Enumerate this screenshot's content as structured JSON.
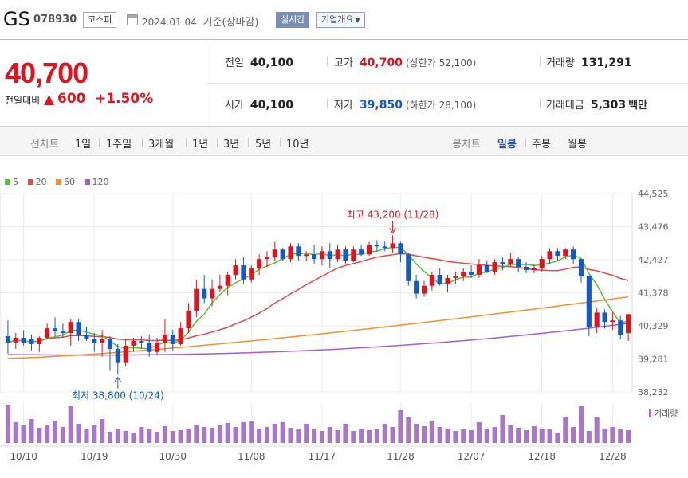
{
  "header": {
    "name": "GS",
    "code": "078930",
    "market": "코스피",
    "date": "2024.01.04",
    "date_suffix": "기준(장마감)",
    "realtime_label": "실시간",
    "company_label": "기업개요"
  },
  "price": {
    "current": "40,700",
    "change_label": "전일대비",
    "change_symbol": "▲",
    "change_amount": "600",
    "change_pct": "+1.50%"
  },
  "stats": {
    "prev_close": {
      "label": "전일",
      "value": "40,100"
    },
    "high": {
      "label": "고가",
      "value": "40,700",
      "sub_label": "상한가",
      "sub_value": "52,100"
    },
    "volume": {
      "label": "거래량",
      "value": "131,291"
    },
    "open": {
      "label": "시가",
      "value": "40,100"
    },
    "low": {
      "label": "저가",
      "value": "39,850",
      "sub_label": "하한가",
      "sub_value": "28,100"
    },
    "amount": {
      "label": "거래대금",
      "value": "5,303",
      "unit": "백만"
    }
  },
  "period_tabs": {
    "line_chart_label": "선차트",
    "items": [
      "1일",
      "1주일",
      "3개월",
      "1년",
      "3년",
      "5년",
      "10년"
    ],
    "candle_label": "봉차트",
    "candle_items": [
      "일봉",
      "주봉",
      "월봉"
    ],
    "active_candle": "일봉"
  },
  "colors": {
    "up": "#e0131f",
    "down": "#1459c8",
    "ma5": "#5bbf3a",
    "ma20": "#e64848",
    "ma60": "#f0922b",
    "ma120": "#a060d0",
    "volume": "#a878c8"
  },
  "chart_data": {
    "type": "candlestick",
    "legend": [
      "5",
      "20",
      "60",
      "120"
    ],
    "volume_legend": "거래량",
    "y_ticks": [
      "44,525",
      "43,476",
      "42,427",
      "41,378",
      "40,329",
      "39,281",
      "38,232"
    ],
    "y_range": [
      38232,
      44525
    ],
    "x_ticks": [
      {
        "label": "10/10",
        "index": 2
      },
      {
        "label": "10/19",
        "index": 11
      },
      {
        "label": "10/30",
        "index": 21
      },
      {
        "label": "11/08",
        "index": 31
      },
      {
        "label": "11/17",
        "index": 40
      },
      {
        "label": "11/28",
        "index": 50
      },
      {
        "label": "12/07",
        "index": 59
      },
      {
        "label": "12/18",
        "index": 68
      },
      {
        "label": "12/28",
        "index": 77
      }
    ],
    "max_annotation": {
      "text": "최고 43,200 (11/28)",
      "index": 49,
      "value": 43200
    },
    "min_annotation": {
      "text": "최저 38,800 (10/24)",
      "index": 14,
      "value": 38800
    },
    "candles": [
      [
        40000,
        40500,
        39450,
        39800
      ],
      [
        39800,
        40100,
        39600,
        39950
      ],
      [
        39950,
        40200,
        39700,
        39800
      ],
      [
        39900,
        40050,
        39550,
        39750
      ],
      [
        39750,
        40000,
        39500,
        39950
      ],
      [
        39950,
        40400,
        39900,
        40250
      ],
      [
        40250,
        40600,
        40000,
        40150
      ],
      [
        40150,
        40400,
        39950,
        40100
      ],
      [
        40100,
        40550,
        39700,
        40450
      ],
      [
        40450,
        40550,
        39850,
        40050
      ],
      [
        40050,
        40300,
        39850,
        39900
      ],
      [
        39900,
        40100,
        39500,
        39800
      ],
      [
        39800,
        40200,
        39350,
        39900
      ],
      [
        39900,
        40000,
        38900,
        39600
      ],
      [
        39600,
        39750,
        38800,
        39150
      ],
      [
        39150,
        39900,
        39050,
        39700
      ],
      [
        39700,
        39950,
        39500,
        39850
      ],
      [
        39850,
        40000,
        39600,
        39800
      ],
      [
        39800,
        40050,
        39350,
        39500
      ],
      [
        39500,
        39950,
        39400,
        39800
      ],
      [
        39800,
        40550,
        39500,
        40050
      ],
      [
        40050,
        40200,
        39550,
        39750
      ],
      [
        39750,
        40450,
        39700,
        40250
      ],
      [
        40250,
        41050,
        40100,
        40800
      ],
      [
        40800,
        41800,
        40600,
        41500
      ],
      [
        41500,
        41950,
        41050,
        41200
      ],
      [
        41200,
        41800,
        40950,
        41500
      ],
      [
        41500,
        41950,
        41400,
        41600
      ],
      [
        41600,
        42050,
        41300,
        41950
      ],
      [
        41950,
        42450,
        41800,
        42250
      ],
      [
        42250,
        42500,
        41650,
        41800
      ],
      [
        41800,
        42250,
        41700,
        42150
      ],
      [
        42150,
        42600,
        41950,
        42450
      ],
      [
        42450,
        42700,
        42200,
        42500
      ],
      [
        42500,
        43000,
        42400,
        42750
      ],
      [
        42750,
        42800,
        42400,
        42450
      ],
      [
        42450,
        42950,
        42350,
        42850
      ],
      [
        42850,
        42950,
        42400,
        42550
      ],
      [
        42550,
        42700,
        42400,
        42600
      ],
      [
        42600,
        42900,
        42300,
        42450
      ],
      [
        42450,
        42850,
        42250,
        42700
      ],
      [
        42700,
        42950,
        42150,
        42450
      ],
      [
        42450,
        42900,
        42350,
        42750
      ],
      [
        42750,
        42850,
        42300,
        42400
      ],
      [
        42400,
        42850,
        42350,
        42750
      ],
      [
        42750,
        42900,
        42550,
        42600
      ],
      [
        42600,
        43000,
        42550,
        42900
      ],
      [
        42900,
        43050,
        42700,
        42850
      ],
      [
        42850,
        43000,
        42700,
        42800
      ],
      [
        42800,
        43200,
        42650,
        42950
      ],
      [
        42950,
        43000,
        42350,
        42600
      ],
      [
        42600,
        42650,
        41600,
        41750
      ],
      [
        41750,
        41950,
        41200,
        41350
      ],
      [
        41350,
        41750,
        41250,
        41600
      ],
      [
        41600,
        42050,
        41450,
        41950
      ],
      [
        41950,
        42150,
        41600,
        41650
      ],
      [
        41650,
        41950,
        41400,
        41850
      ],
      [
        41850,
        42050,
        41650,
        41900
      ],
      [
        41900,
        42150,
        41750,
        42050
      ],
      [
        42050,
        42250,
        41850,
        41950
      ],
      [
        41950,
        42450,
        41850,
        42250
      ],
      [
        42250,
        42400,
        42000,
        42050
      ],
      [
        42050,
        42450,
        41950,
        42350
      ],
      [
        42350,
        42500,
        42100,
        42300
      ],
      [
        42300,
        42650,
        42200,
        42450
      ],
      [
        42450,
        42500,
        42050,
        42200
      ],
      [
        42200,
        42350,
        42000,
        42100
      ],
      [
        42100,
        42300,
        42000,
        42150
      ],
      [
        42150,
        42550,
        42050,
        42450
      ],
      [
        42450,
        42800,
        42300,
        42700
      ],
      [
        42700,
        42800,
        42400,
        42550
      ],
      [
        42550,
        42800,
        42450,
        42750
      ],
      [
        42750,
        42850,
        42300,
        42450
      ],
      [
        42450,
        42450,
        41700,
        41900
      ],
      [
        41900,
        41900,
        40000,
        40300
      ],
      [
        40300,
        40900,
        40100,
        40750
      ],
      [
        40750,
        40850,
        40250,
        40450
      ],
      [
        40450,
        40750,
        40200,
        40500
      ],
      [
        40500,
        40650,
        39900,
        40050
      ],
      [
        40100,
        40700,
        39850,
        40700
      ]
    ],
    "volume": [
      96,
      52,
      45,
      60,
      38,
      44,
      55,
      40,
      92,
      48,
      36,
      44,
      60,
      28,
      35,
      30,
      26,
      40,
      35,
      28,
      42,
      30,
      32,
      36,
      44,
      40,
      38,
      44,
      50,
      40,
      52,
      54,
      36,
      40,
      48,
      52,
      38,
      34,
      48,
      36,
      30,
      40,
      32,
      48,
      30,
      36,
      32,
      34,
      48,
      40,
      82,
      64,
      48,
      42,
      54,
      40,
      36,
      30,
      34,
      32,
      52,
      36,
      40,
      70,
      44,
      38,
      32,
      42,
      36,
      34,
      26,
      64,
      40,
      94,
      30,
      64,
      36,
      40,
      34,
      32
    ]
  }
}
